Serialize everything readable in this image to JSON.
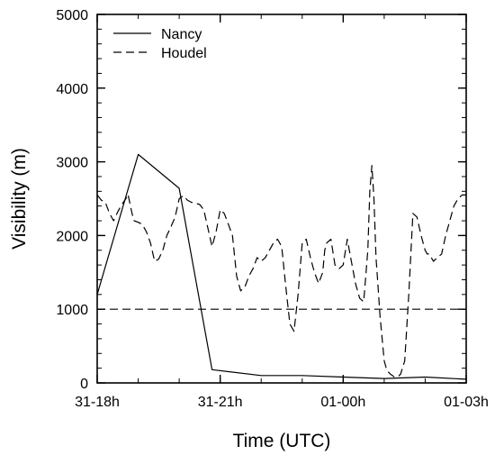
{
  "chart_data": {
    "type": "line",
    "title": "",
    "xlabel": "Time (UTC)",
    "ylabel": "Visibility (m)",
    "x_unit": "hours",
    "xlim": [
      0,
      9
    ],
    "ylim": [
      0,
      5000
    ],
    "x_ticks": [
      {
        "value": 0,
        "label": "31-18h"
      },
      {
        "value": 3,
        "label": "31-21h"
      },
      {
        "value": 6,
        "label": "01-00h"
      },
      {
        "value": 9,
        "label": "01-03h"
      }
    ],
    "y_ticks": [
      {
        "value": 0,
        "label": "0"
      },
      {
        "value": 1000,
        "label": "1000"
      },
      {
        "value": 2000,
        "label": "2000"
      },
      {
        "value": 3000,
        "label": "3000"
      },
      {
        "value": 4000,
        "label": "4000"
      },
      {
        "value": 5000,
        "label": "5000"
      }
    ],
    "grid": false,
    "legend_position": "top-left",
    "series": [
      {
        "name": "Nancy",
        "style": "solid",
        "color": "#000000",
        "x": [
          0,
          1,
          2,
          2.8,
          4,
          5,
          6,
          7,
          8,
          9
        ],
        "y": [
          1200,
          3100,
          2640,
          180,
          100,
          100,
          80,
          60,
          80,
          50
        ]
      },
      {
        "name": "Houdel",
        "style": "dashed",
        "color": "#000000",
        "x": [
          0,
          0.1,
          0.2,
          0.3,
          0.4,
          0.5,
          0.6,
          0.7,
          0.75,
          0.85,
          0.9,
          1.0,
          1.1,
          1.2,
          1.3,
          1.4,
          1.5,
          1.6,
          1.7,
          1.8,
          1.9,
          2.0,
          2.1,
          2.2,
          2.3,
          2.4,
          2.5,
          2.6,
          2.7,
          2.8,
          2.9,
          3.0,
          3.1,
          3.2,
          3.3,
          3.4,
          3.5,
          3.6,
          3.7,
          3.8,
          3.9,
          4.0,
          4.1,
          4.2,
          4.3,
          4.4,
          4.5,
          4.6,
          4.7,
          4.8,
          4.9,
          5.0,
          5.1,
          5.2,
          5.3,
          5.4,
          5.5,
          5.55,
          5.6,
          5.7,
          5.8,
          5.9,
          6.0,
          6.1,
          6.2,
          6.3,
          6.4,
          6.5,
          6.6,
          6.65,
          6.7,
          6.75,
          6.8,
          6.85,
          6.9,
          6.95,
          7.0,
          7.05,
          7.1,
          7.15,
          7.2,
          7.25,
          7.3,
          7.35,
          7.4,
          7.5,
          7.6,
          7.7,
          7.8,
          7.9,
          8.0,
          8.05,
          8.1,
          8.2,
          8.3,
          8.4,
          8.5,
          8.6,
          8.7,
          8.8,
          8.9,
          9.0
        ],
        "y": [
          2550,
          2480,
          2450,
          2300,
          2200,
          2320,
          2420,
          2500,
          2560,
          2300,
          2200,
          2180,
          2150,
          2050,
          1900,
          1650,
          1680,
          1800,
          2000,
          2120,
          2250,
          2500,
          2540,
          2480,
          2450,
          2440,
          2420,
          2350,
          2100,
          1850,
          2050,
          2350,
          2300,
          2150,
          2000,
          1450,
          1250,
          1300,
          1450,
          1550,
          1700,
          1650,
          1700,
          1800,
          1900,
          1950,
          1850,
          1300,
          800,
          700,
          1200,
          1900,
          1950,
          1700,
          1500,
          1350,
          1500,
          1800,
          1900,
          1950,
          1600,
          1550,
          1600,
          1950,
          1650,
          1350,
          1150,
          1100,
          1800,
          2600,
          2950,
          2500,
          1700,
          1300,
          900,
          600,
          300,
          200,
          150,
          120,
          100,
          80,
          80,
          90,
          120,
          300,
          1200,
          2300,
          2250,
          2000,
          1800,
          1750,
          1750,
          1650,
          1700,
          1750,
          2000,
          2200,
          2400,
          2500,
          2550,
          2550
        ],
        "_x_note": "hours after 31-18h"
      },
      {
        "name": "",
        "style": "dashed",
        "color": "#000000",
        "x": [
          0,
          9
        ],
        "y": [
          1000,
          1000
        ]
      }
    ]
  }
}
